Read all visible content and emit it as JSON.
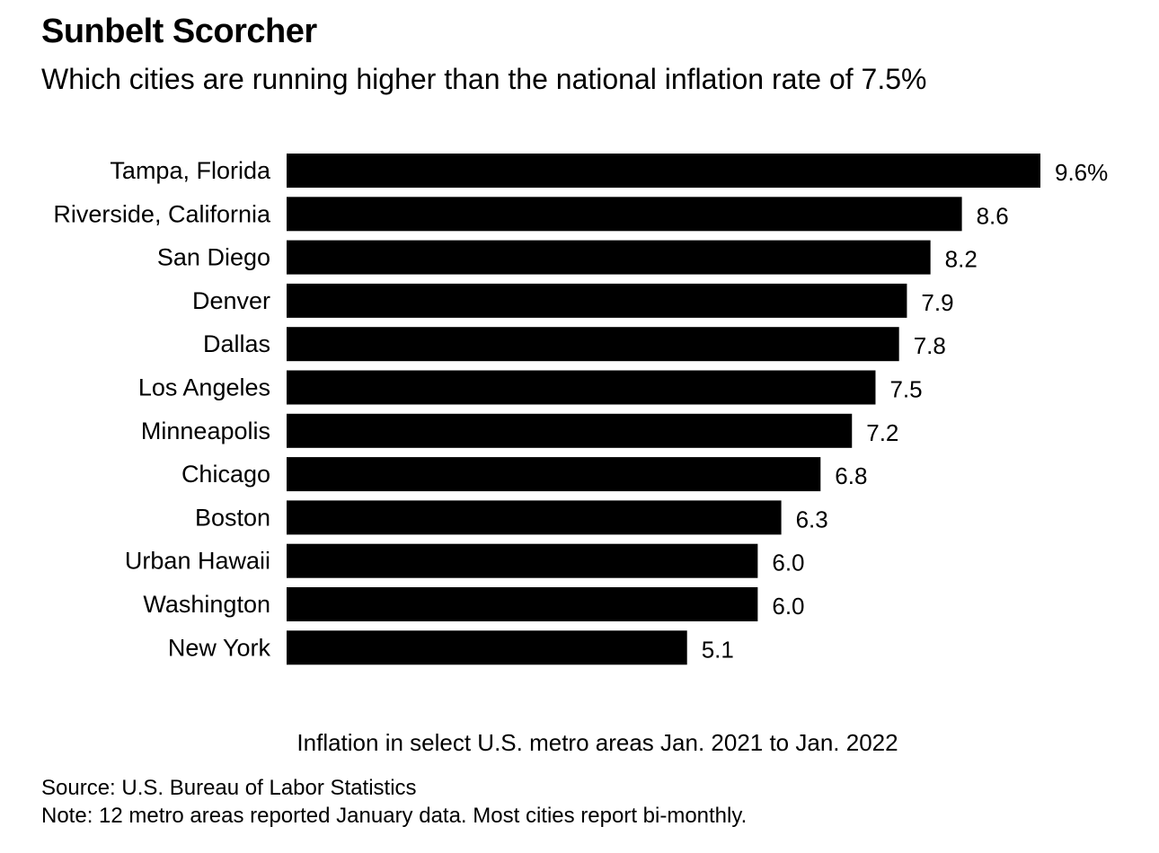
{
  "chart_data": {
    "type": "bar",
    "orientation": "horizontal",
    "title": "Sunbelt Scorcher",
    "subtitle": "Which cities are running higher than the national inflation rate of 7.5%",
    "xlabel": "Inflation in select U.S. metro areas Jan. 2021 to Jan. 2022",
    "ylabel": "",
    "categories": [
      "Tampa, Florida",
      "Riverside, California",
      "San Diego",
      "Denver",
      "Dallas",
      "Los Angeles",
      "Minneapolis",
      "Chicago",
      "Boston",
      "Urban Hawaii",
      "Washington",
      "New York"
    ],
    "values": [
      9.6,
      8.6,
      8.2,
      7.9,
      7.8,
      7.5,
      7.2,
      6.8,
      6.3,
      6.0,
      6.0,
      5.1
    ],
    "value_labels": [
      "9.6%",
      "8.6",
      "8.2",
      "7.9",
      "7.8",
      "7.5",
      "7.2",
      "6.8",
      "6.3",
      "6.0",
      "6.0",
      "5.1"
    ],
    "bar_color": "#000000",
    "xlim": [
      0,
      9.6
    ],
    "grid": false,
    "legend": "none"
  },
  "footer": {
    "source": "Source: U.S. Bureau of Labor Statistics",
    "note": "Note: 12 metro areas reported January data. Most cities report bi-monthly."
  }
}
